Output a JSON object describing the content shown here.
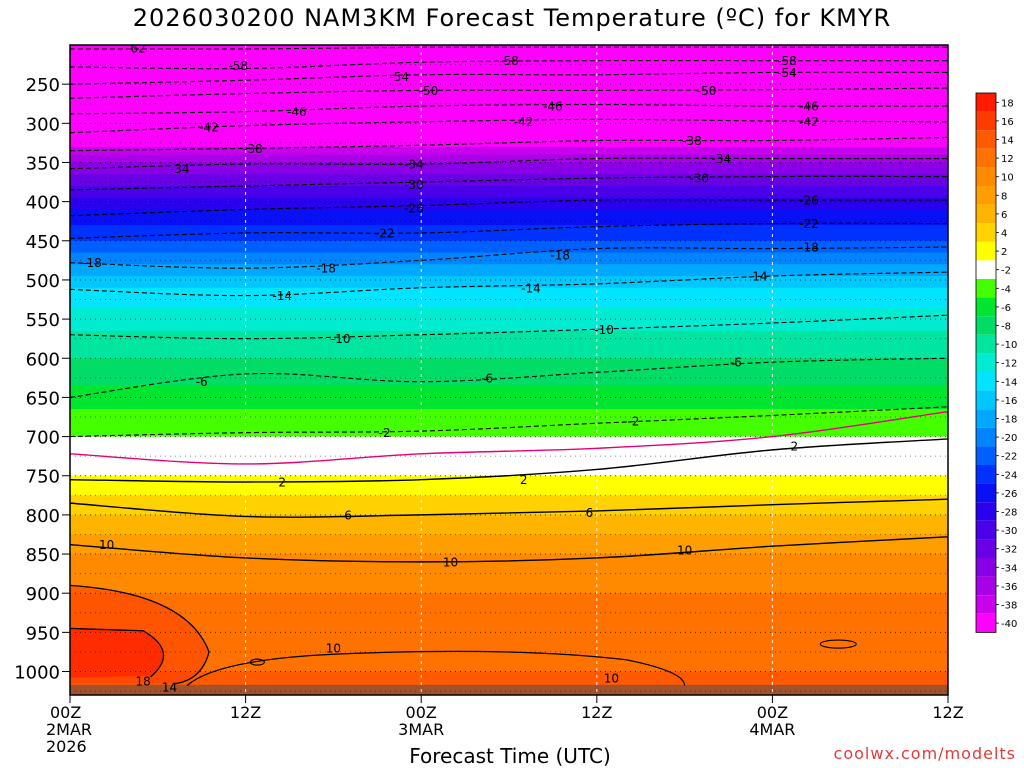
{
  "title": "2026030200 NAM3KM Forecast Temperature (ºC) for KMYR",
  "credit": "coolwx.com/modelts",
  "chart_data": {
    "type": "heatmap",
    "xlabel": "Forecast Time (UTC)",
    "ylabel": "",
    "x_range_hours": [
      0,
      60
    ],
    "x_ticks": [
      {
        "hour": 0,
        "lines": [
          "00Z",
          "2MAR",
          "2026"
        ]
      },
      {
        "hour": 12,
        "lines": [
          "12Z"
        ]
      },
      {
        "hour": 24,
        "lines": [
          "00Z",
          "3MAR"
        ]
      },
      {
        "hour": 36,
        "lines": [
          "12Z"
        ]
      },
      {
        "hour": 48,
        "lines": [
          "00Z",
          "4MAR"
        ]
      },
      {
        "hour": 60,
        "lines": [
          "12Z"
        ]
      }
    ],
    "y_axis": "pressure (hPa), reversed",
    "y_range": [
      1030,
      200
    ],
    "y_ticks": [
      250,
      300,
      350,
      400,
      450,
      500,
      550,
      600,
      650,
      700,
      750,
      800,
      850,
      900,
      950,
      1000
    ],
    "colorbar": {
      "labels": [
        18,
        16,
        14,
        12,
        10,
        8,
        6,
        4,
        2,
        -2,
        -4,
        -6,
        -8,
        -10,
        -12,
        -14,
        -16,
        -18,
        -20,
        -22,
        -24,
        -26,
        -28,
        -30,
        -32,
        -34,
        -36,
        -38,
        -40
      ],
      "colors": [
        "#ff1a00",
        "#ff3c00",
        "#ff5a00",
        "#ff7200",
        "#ff8a00",
        "#ff9e00",
        "#ffb400",
        "#ffd200",
        "#ffff00",
        "#ffffff",
        "#44ff00",
        "#00e630",
        "#00dd66",
        "#00e6a0",
        "#00ecd2",
        "#00e4ff",
        "#00c8ff",
        "#00a8ff",
        "#0084ff",
        "#0060ff",
        "#0032ff",
        "#0a10f5",
        "#2a00ee",
        "#4a00e8",
        "#6a00e6",
        "#8a00e6",
        "#aa00e8",
        "#c800ee",
        "#ff00ff"
      ]
    },
    "contours": [
      {
        "label": "-62",
        "style": "dashed",
        "p": [
          205,
          205,
          203,
          203,
          203,
          203
        ]
      },
      {
        "label": "-58",
        "style": "dashed",
        "p": [
          228,
          230,
          222,
          220,
          220,
          220
        ]
      },
      {
        "label": "-54",
        "style": "dashed",
        "p": [
          250,
          245,
          238,
          238,
          235,
          235
        ]
      },
      {
        "label": "-50",
        "style": "dashed",
        "p": [
          268,
          262,
          258,
          258,
          257,
          255
        ]
      },
      {
        "label": "-46",
        "style": "dashed",
        "p": [
          288,
          285,
          278,
          276,
          278,
          278
        ]
      },
      {
        "label": "-42",
        "style": "dashed",
        "p": [
          312,
          303,
          298,
          295,
          297,
          298
        ]
      },
      {
        "label": "-38",
        "style": "dashed",
        "p": [
          335,
          332,
          328,
          322,
          322,
          318
        ]
      },
      {
        "label": "-34",
        "style": "dashed",
        "p": [
          358,
          352,
          352,
          345,
          345,
          345
        ]
      },
      {
        "label": "-30",
        "style": "dashed",
        "p": [
          385,
          380,
          375,
          370,
          368,
          368
        ]
      },
      {
        "label": "-26",
        "style": "dashed",
        "p": [
          418,
          410,
          405,
          398,
          398,
          398
        ]
      },
      {
        "label": "-22",
        "style": "dashed",
        "p": [
          447,
          440,
          440,
          432,
          428,
          428
        ]
      },
      {
        "label": "-18",
        "style": "dashed",
        "p": [
          478,
          485,
          475,
          460,
          460,
          458
        ]
      },
      {
        "label": "-14",
        "style": "dashed",
        "p": [
          512,
          520,
          510,
          505,
          495,
          490
        ]
      },
      {
        "label": "-10",
        "style": "dashed",
        "p": [
          570,
          575,
          570,
          563,
          555,
          545
        ]
      },
      {
        "label": "-6",
        "style": "dashed",
        "p": [
          650,
          620,
          630,
          618,
          605,
          600
        ]
      },
      {
        "label": "-2",
        "style": "dashed",
        "p": [
          700,
          695,
          693,
          683,
          673,
          662
        ]
      },
      {
        "label": "0",
        "style": "magenta",
        "p": [
          722,
          735,
          722,
          715,
          700,
          668
        ]
      },
      {
        "label": "2",
        "style": "solid",
        "p": [
          755,
          758,
          755,
          742,
          717,
          703
        ]
      },
      {
        "label": "6",
        "style": "solid",
        "p": [
          785,
          802,
          800,
          795,
          787,
          780
        ]
      },
      {
        "label": "10",
        "style": "solid",
        "p": [
          838,
          855,
          860,
          855,
          840,
          828
        ]
      }
    ],
    "contour_labels": [
      {
        "text": "-62",
        "h": 4.5,
        "p": 204
      },
      {
        "text": "-58",
        "h": 11.5,
        "p": 226
      },
      {
        "text": "-58",
        "h": 30,
        "p": 220
      },
      {
        "text": "-58",
        "h": 49,
        "p": 220
      },
      {
        "text": "-54",
        "h": 22.5,
        "p": 240
      },
      {
        "text": "-54",
        "h": 49,
        "p": 235
      },
      {
        "text": "-50",
        "h": 24.5,
        "p": 258
      },
      {
        "text": "-50",
        "h": 43.5,
        "p": 258
      },
      {
        "text": "-46",
        "h": 15.5,
        "p": 285
      },
      {
        "text": "-46",
        "h": 33,
        "p": 278
      },
      {
        "text": "-46",
        "h": 50.5,
        "p": 278
      },
      {
        "text": "-42",
        "h": 9.5,
        "p": 305
      },
      {
        "text": "-42",
        "h": 31,
        "p": 298
      },
      {
        "text": "-42",
        "h": 50.5,
        "p": 298
      },
      {
        "text": "-38",
        "h": 12.5,
        "p": 332
      },
      {
        "text": "-38",
        "h": 42.5,
        "p": 322
      },
      {
        "text": "-34",
        "h": 7.5,
        "p": 358
      },
      {
        "text": "-34",
        "h": 23.5,
        "p": 352
      },
      {
        "text": "-34",
        "h": 44.5,
        "p": 345
      },
      {
        "text": "-30",
        "h": 23.5,
        "p": 378
      },
      {
        "text": "-30",
        "h": 43,
        "p": 370
      },
      {
        "text": "-26",
        "h": 23.5,
        "p": 408
      },
      {
        "text": "-26",
        "h": 50.5,
        "p": 398
      },
      {
        "text": "-22",
        "h": 21.5,
        "p": 440
      },
      {
        "text": "-22",
        "h": 50.5,
        "p": 428
      },
      {
        "text": "-18",
        "h": 1.5,
        "p": 478
      },
      {
        "text": "-18",
        "h": 17.5,
        "p": 485
      },
      {
        "text": "-18",
        "h": 33.5,
        "p": 468
      },
      {
        "text": "-18",
        "h": 50.5,
        "p": 458
      },
      {
        "text": "-14",
        "h": 14.5,
        "p": 520
      },
      {
        "text": "-14",
        "h": 31.5,
        "p": 510
      },
      {
        "text": "-14",
        "h": 47,
        "p": 495
      },
      {
        "text": "-10",
        "h": 18.5,
        "p": 575
      },
      {
        "text": "-10",
        "h": 36.5,
        "p": 563
      },
      {
        "text": "-6",
        "h": 9,
        "p": 630
      },
      {
        "text": "-6",
        "h": 28.5,
        "p": 625
      },
      {
        "text": "-6",
        "h": 45.5,
        "p": 605
      },
      {
        "text": "-2",
        "h": 21.5,
        "p": 695
      },
      {
        "text": "-2",
        "h": 38.5,
        "p": 680
      },
      {
        "text": "2",
        "h": 14.5,
        "p": 758
      },
      {
        "text": "2",
        "h": 31,
        "p": 755
      },
      {
        "text": "2",
        "h": 49.5,
        "p": 712
      },
      {
        "text": "6",
        "h": 19,
        "p": 800
      },
      {
        "text": "6",
        "h": 35.5,
        "p": 797
      },
      {
        "text": "10",
        "h": 2.5,
        "p": 838
      },
      {
        "text": "10",
        "h": 26,
        "p": 860
      },
      {
        "text": "10",
        "h": 42,
        "p": 845
      },
      {
        "text": "10",
        "h": 18,
        "p": 970
      },
      {
        "text": "10",
        "h": 37,
        "p": 1008
      },
      {
        "text": "14",
        "h": 6.8,
        "p": 1020
      },
      {
        "text": "18",
        "h": 5,
        "p": 1012
      }
    ]
  }
}
